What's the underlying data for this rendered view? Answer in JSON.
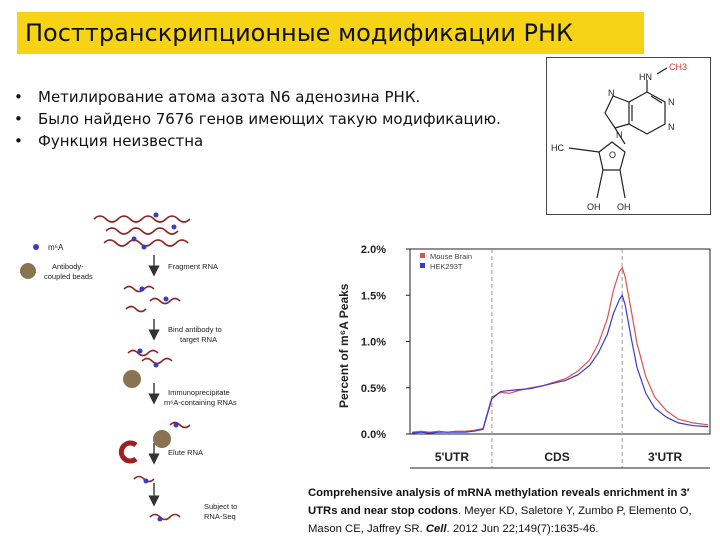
{
  "title": "Посттранскрипционные модификации РНК",
  "bullets": [
    "Метилирование атома азота N6 аденозина РНК.",
    "Было найдено 7676 генов имеющих такую модификацию.",
    "Функция неизвестна"
  ],
  "molecule": {
    "labels": {
      "nh": "HN",
      "ch3": "CH3",
      "n1": "N",
      "n2": "N",
      "n3": "N",
      "n4": "N",
      "ho": "HC",
      "o": "O",
      "oh1": "OH",
      "oh2": "OH"
    },
    "colors": {
      "ch3": "#d23a3a"
    }
  },
  "schematic": {
    "legend_m6a": "m⁶A",
    "legend_beads": [
      "Antibody-",
      "coupled beads"
    ],
    "steps": {
      "fragment": "Fragment RNA",
      "bind": [
        "Bind antibody to",
        "target RNA"
      ],
      "ip": [
        "Immunoprecipitate",
        "m⁶A-containing RNAs"
      ],
      "elute": "Elute RNA",
      "seq": [
        "Subject to",
        "RNA-Seq"
      ]
    },
    "colors": {
      "rna": "#8b2a2a",
      "m6a": "#3b3bc4",
      "bead": "#8a7350",
      "magnet": "#9c2020"
    }
  },
  "chart_data": {
    "type": "line",
    "ylabel": "Percent of m⁶A Peaks",
    "ylim": [
      0,
      2.0
    ],
    "yticks": [
      "0.0%",
      "0.5%",
      "1.0%",
      "1.5%",
      "2.0%"
    ],
    "regions": [
      "5'UTR",
      "CDS",
      "3'UTR"
    ],
    "x": [
      0,
      3,
      6,
      9,
      12,
      15,
      18,
      21,
      24,
      27,
      30,
      33,
      36,
      40,
      44,
      48,
      52,
      56,
      60,
      63,
      66,
      68,
      70,
      71,
      72,
      74,
      76,
      79,
      82,
      86,
      90,
      95,
      100
    ],
    "series": [
      {
        "name": "Mouse Brain",
        "color": "#d9534f",
        "values": [
          0.02,
          0.03,
          0.02,
          0.03,
          0.02,
          0.03,
          0.03,
          0.04,
          0.06,
          0.4,
          0.45,
          0.44,
          0.47,
          0.5,
          0.52,
          0.56,
          0.6,
          0.68,
          0.8,
          0.98,
          1.25,
          1.55,
          1.75,
          1.8,
          1.7,
          1.35,
          0.98,
          0.62,
          0.4,
          0.25,
          0.16,
          0.12,
          0.1
        ]
      },
      {
        "name": "HEK293T",
        "color": "#3a3ad0",
        "values": [
          0.01,
          0.02,
          0.01,
          0.02,
          0.02,
          0.02,
          0.02,
          0.03,
          0.05,
          0.38,
          0.46,
          0.47,
          0.48,
          0.49,
          0.52,
          0.55,
          0.58,
          0.64,
          0.74,
          0.88,
          1.08,
          1.3,
          1.45,
          1.5,
          1.4,
          1.05,
          0.72,
          0.44,
          0.28,
          0.18,
          0.12,
          0.09,
          0.08
        ]
      }
    ],
    "boundaries": [
      27,
      71
    ]
  },
  "caption": {
    "bold": "Comprehensive analysis of mRNA methylation reveals enrichment in 3′ UTRs and near stop codons",
    "authors": ". Meyer KD, Saletore Y, Zumbo P, Elemento O, Mason CE, Jaffrey SR. ",
    "journal": "Cell",
    "rest": ". 2012 Jun 22;149(7):1635-46."
  }
}
